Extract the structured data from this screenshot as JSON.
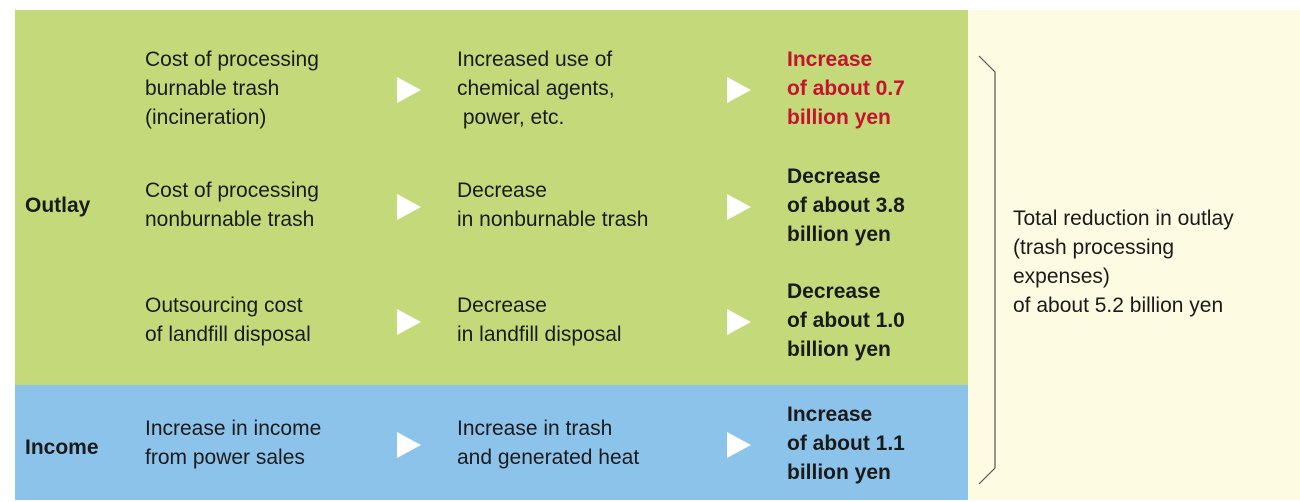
{
  "sections": [
    {
      "label": "Outlay",
      "rows": [
        {
          "item": [
            "Cost of processing",
            "burnable trash",
            "(incineration)"
          ],
          "cause": [
            "Increased use of",
            "chemical agents,",
            " power, etc."
          ],
          "effect": [
            "Increase",
            "of about 0.7",
            "billion yen"
          ]
        },
        {
          "item": [
            "Cost of processing",
            "nonburnable trash"
          ],
          "cause": [
            "Decrease",
            "in nonburnable trash"
          ],
          "effect": [
            "Decrease",
            "of about 3.8",
            "billion yen"
          ]
        },
        {
          "item": [
            "Outsourcing cost",
            "of landfill disposal"
          ],
          "cause": [
            "Decrease",
            "in landfill disposal"
          ],
          "effect": [
            "Decrease",
            "of about 1.0",
            "billion yen"
          ]
        }
      ]
    },
    {
      "label": "Income",
      "rows": [
        {
          "item": [
            "Increase in income",
            "from power sales"
          ],
          "cause": [
            "Increase in trash",
            "and generated heat"
          ],
          "effect": [
            "Increase",
            "of about 1.1",
            "billion yen"
          ]
        }
      ]
    }
  ],
  "total": [
    "Total reduction in outlay",
    "(trash processing",
    "expenses)",
    "of about 5.2 billion yen"
  ]
}
